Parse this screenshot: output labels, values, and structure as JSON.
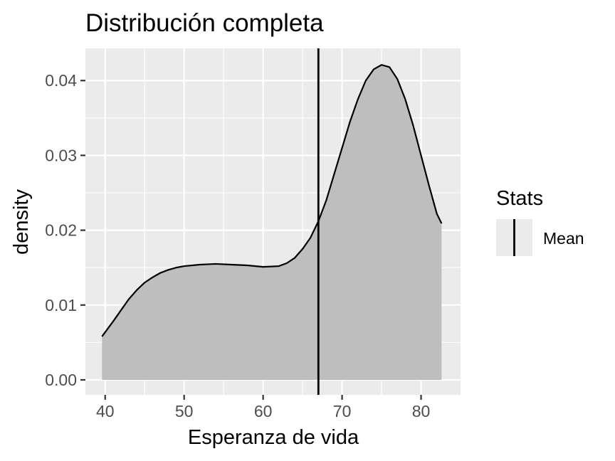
{
  "chart_data": {
    "type": "area",
    "title": "Distribución completa",
    "xlabel": "Esperanza de vida",
    "ylabel": "density",
    "xlim": [
      37.5,
      85
    ],
    "ylim": [
      -0.002,
      0.0443
    ],
    "x_ticks": [
      40,
      50,
      60,
      70,
      80
    ],
    "x_tick_labels": [
      "40",
      "50",
      "60",
      "70",
      "80"
    ],
    "y_ticks": [
      0.0,
      0.01,
      0.02,
      0.03,
      0.04
    ],
    "y_tick_labels": [
      "0.00",
      "0.01",
      "0.02",
      "0.03",
      "0.04"
    ],
    "grid": true,
    "panel_background": "#ebebeb",
    "grid_color": "#ffffff",
    "fill_color": "#bebebe",
    "line_color": "#000000",
    "series": [
      {
        "x": [
          39.6,
          41,
          42,
          43,
          44,
          45,
          46,
          47,
          48,
          49,
          50,
          52,
          54,
          56,
          58,
          60,
          62,
          63,
          64,
          65,
          66,
          67,
          68,
          69,
          70,
          71,
          72,
          73,
          74,
          75,
          76,
          77,
          78,
          79,
          80,
          81,
          82,
          82.6
        ],
        "y": [
          0.0058,
          0.0078,
          0.0093,
          0.0108,
          0.012,
          0.013,
          0.0137,
          0.0143,
          0.0147,
          0.015,
          0.0152,
          0.0154,
          0.0155,
          0.0154,
          0.0153,
          0.0151,
          0.0152,
          0.0156,
          0.0163,
          0.0175,
          0.019,
          0.0212,
          0.024,
          0.0275,
          0.031,
          0.0345,
          0.0375,
          0.04,
          0.0415,
          0.0421,
          0.0418,
          0.0402,
          0.0375,
          0.034,
          0.03,
          0.026,
          0.0222,
          0.0209
        ]
      }
    ],
    "vlines": [
      {
        "x": 67.0,
        "label": "Mean"
      }
    ],
    "legend": {
      "title": "Stats",
      "placement": "right",
      "entries": [
        "Mean"
      ]
    }
  }
}
